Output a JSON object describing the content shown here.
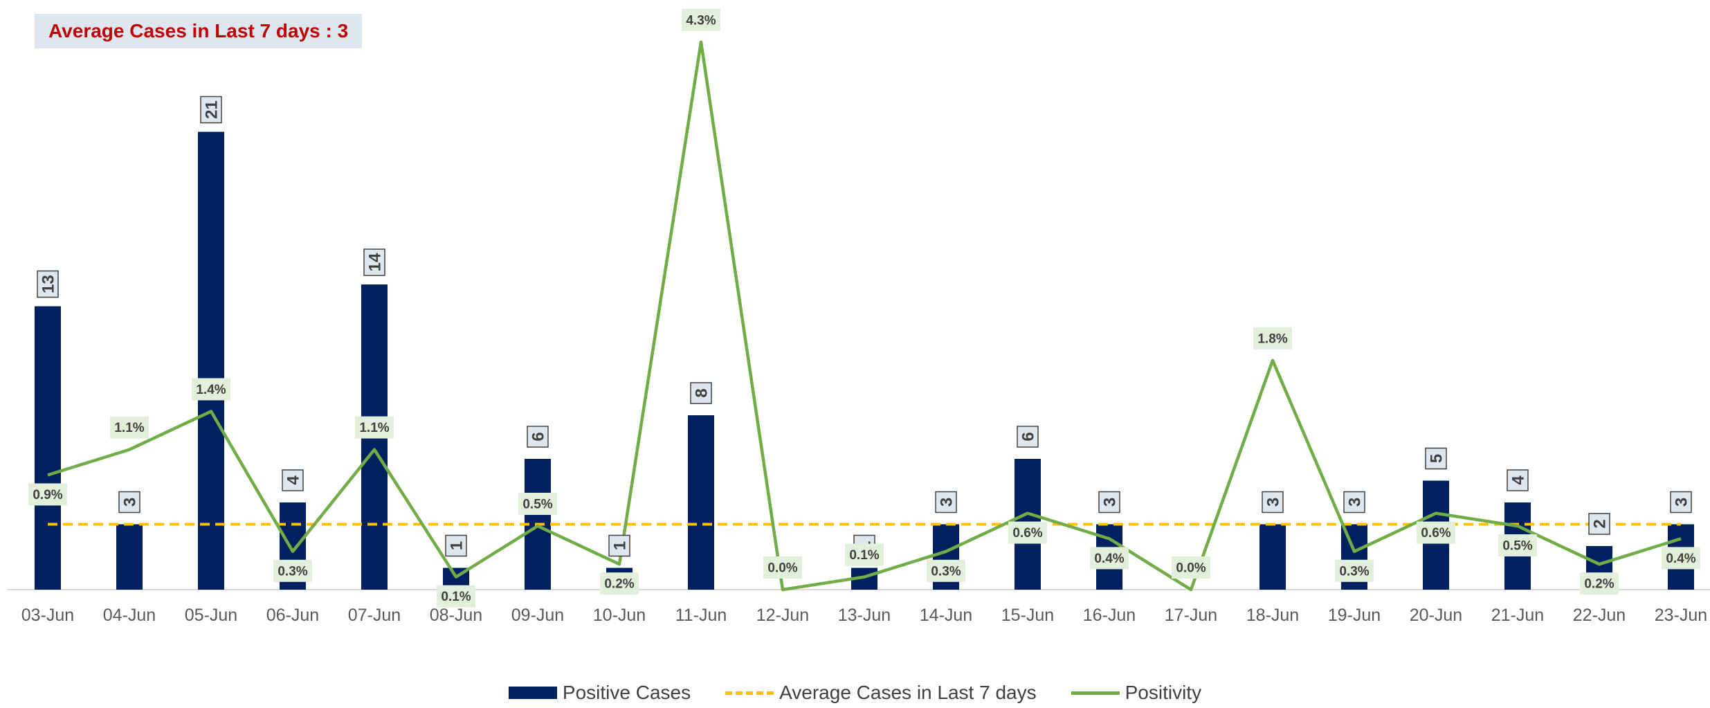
{
  "title": "Average Cases in Last 7 days : 3",
  "colors": {
    "bar": "#002060",
    "avg_line": "#ffc000",
    "positivity_line": "#70ad47",
    "title_text": "#c00000",
    "title_bg": "#dee6f0",
    "pct_label_bg": "#e2efda",
    "bar_label_bg": "#dee6f0"
  },
  "legend": {
    "bar": "Positive Cases",
    "avg": "Average Cases in Last 7 days",
    "positivity": "Positivity"
  },
  "chart_data": {
    "type": "bar",
    "categories": [
      "03-Jun",
      "04-Jun",
      "05-Jun",
      "06-Jun",
      "07-Jun",
      "08-Jun",
      "09-Jun",
      "10-Jun",
      "11-Jun",
      "12-Jun",
      "13-Jun",
      "14-Jun",
      "15-Jun",
      "16-Jun",
      "17-Jun",
      "18-Jun",
      "19-Jun",
      "20-Jun",
      "21-Jun",
      "22-Jun",
      "23-Jun"
    ],
    "series": [
      {
        "name": "Positive Cases",
        "kind": "bar",
        "values": [
          13,
          3,
          21,
          4,
          14,
          1,
          6,
          1,
          8,
          0,
          1,
          3,
          6,
          3,
          0,
          3,
          3,
          5,
          4,
          2,
          3
        ]
      },
      {
        "name": "Average Cases in Last 7 days",
        "kind": "dashed-line",
        "values": [
          3,
          3,
          3,
          3,
          3,
          3,
          3,
          3,
          3,
          3,
          3,
          3,
          3,
          3,
          3,
          3,
          3,
          3,
          3,
          3,
          3
        ]
      },
      {
        "name": "Positivity",
        "kind": "line",
        "values": [
          0.9,
          1.1,
          1.4,
          0.3,
          1.1,
          0.1,
          0.5,
          0.2,
          4.3,
          0.0,
          0.1,
          0.3,
          0.6,
          0.4,
          0.0,
          1.8,
          0.3,
          0.6,
          0.5,
          0.2,
          0.4
        ],
        "labels": [
          "0.9%",
          "1.1%",
          "1.4%",
          "0.3%",
          "1.1%",
          "0.1%",
          "0.5%",
          "0.2%",
          "4.3%",
          "0.0%",
          "0.1%",
          "0.3%",
          "0.6%",
          "0.4%",
          "0.0%",
          "1.8%",
          "0.3%",
          "0.6%",
          "0.5%",
          "0.2%",
          "0.4%"
        ]
      }
    ],
    "ylim": [
      0,
      21
    ],
    "grid": false,
    "legend_position": "bottom"
  }
}
